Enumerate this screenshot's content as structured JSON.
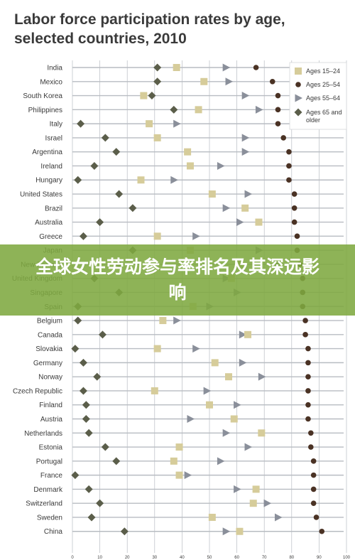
{
  "banner": {
    "text": "全球女性劳动参与率排名及其深远影响"
  },
  "chart_data": {
    "type": "scatter",
    "title": "Labor force participation rates by age, selected countries, 2010",
    "xlim": [
      0,
      100
    ],
    "xticks": [
      0,
      10,
      20,
      30,
      40,
      50,
      60,
      70,
      80,
      90,
      100
    ],
    "grid": false,
    "legend_position": "top-right",
    "categories": [
      "India",
      "Mexico",
      "South Korea",
      "Philippines",
      "Italy",
      "Israel",
      "Argentina",
      "Ireland",
      "Hungary",
      "United States",
      "Brazil",
      "Australia",
      "Greece",
      "Japan",
      "New Zealand",
      "United Kingdom",
      "Singapore",
      "Spain",
      "Belgium",
      "Canada",
      "Slovakia",
      "Germany",
      "Norway",
      "Czech Republic",
      "Finland",
      "Austria",
      "Netherlands",
      "Estonia",
      "Portugal",
      "France",
      "Denmark",
      "Switzerland",
      "Sweden",
      "China"
    ],
    "series": [
      {
        "name": "Ages 15–24",
        "marker": "square",
        "color": "#d6cc9a",
        "values": [
          38,
          48,
          26,
          46,
          28,
          31,
          42,
          43,
          25,
          51,
          63,
          68,
          31,
          43,
          61,
          58,
          39,
          44,
          33,
          64,
          31,
          52,
          57,
          30,
          50,
          59,
          69,
          39,
          37,
          39,
          67,
          66,
          51,
          61
        ]
      },
      {
        "name": "Ages 25–54",
        "marker": "circle",
        "color": "#4a3224",
        "values": [
          67,
          73,
          75,
          75,
          75,
          77,
          79,
          79,
          79,
          81,
          81,
          81,
          82,
          82,
          83,
          84,
          84,
          84,
          85,
          85,
          86,
          86,
          86,
          86,
          86,
          86,
          87,
          87,
          88,
          88,
          88,
          88,
          89,
          91
        ]
      },
      {
        "name": "Ages 55–64",
        "marker": "triangle",
        "color": "#8a8f9a",
        "values": [
          56,
          57,
          63,
          68,
          38,
          63,
          63,
          54,
          37,
          64,
          56,
          61,
          45,
          68,
          75,
          56,
          60,
          50,
          38,
          62,
          45,
          62,
          69,
          49,
          60,
          43,
          56,
          64,
          54,
          42,
          60,
          71,
          75,
          56
        ]
      },
      {
        "name": "Ages 65 and older",
        "marker": "diamond",
        "color": "#5b5e4a",
        "values": [
          31,
          31,
          29,
          37,
          3,
          12,
          16,
          8,
          2,
          17,
          22,
          10,
          4,
          22,
          17,
          8,
          17,
          2,
          2,
          11,
          1,
          4,
          9,
          4,
          5,
          5,
          6,
          12,
          16,
          1,
          6,
          10,
          7,
          19
        ]
      }
    ]
  },
  "colors": {
    "gridline": "#b8bcc2",
    "label": "#3a3a3a",
    "banner": "#7ea840"
  }
}
